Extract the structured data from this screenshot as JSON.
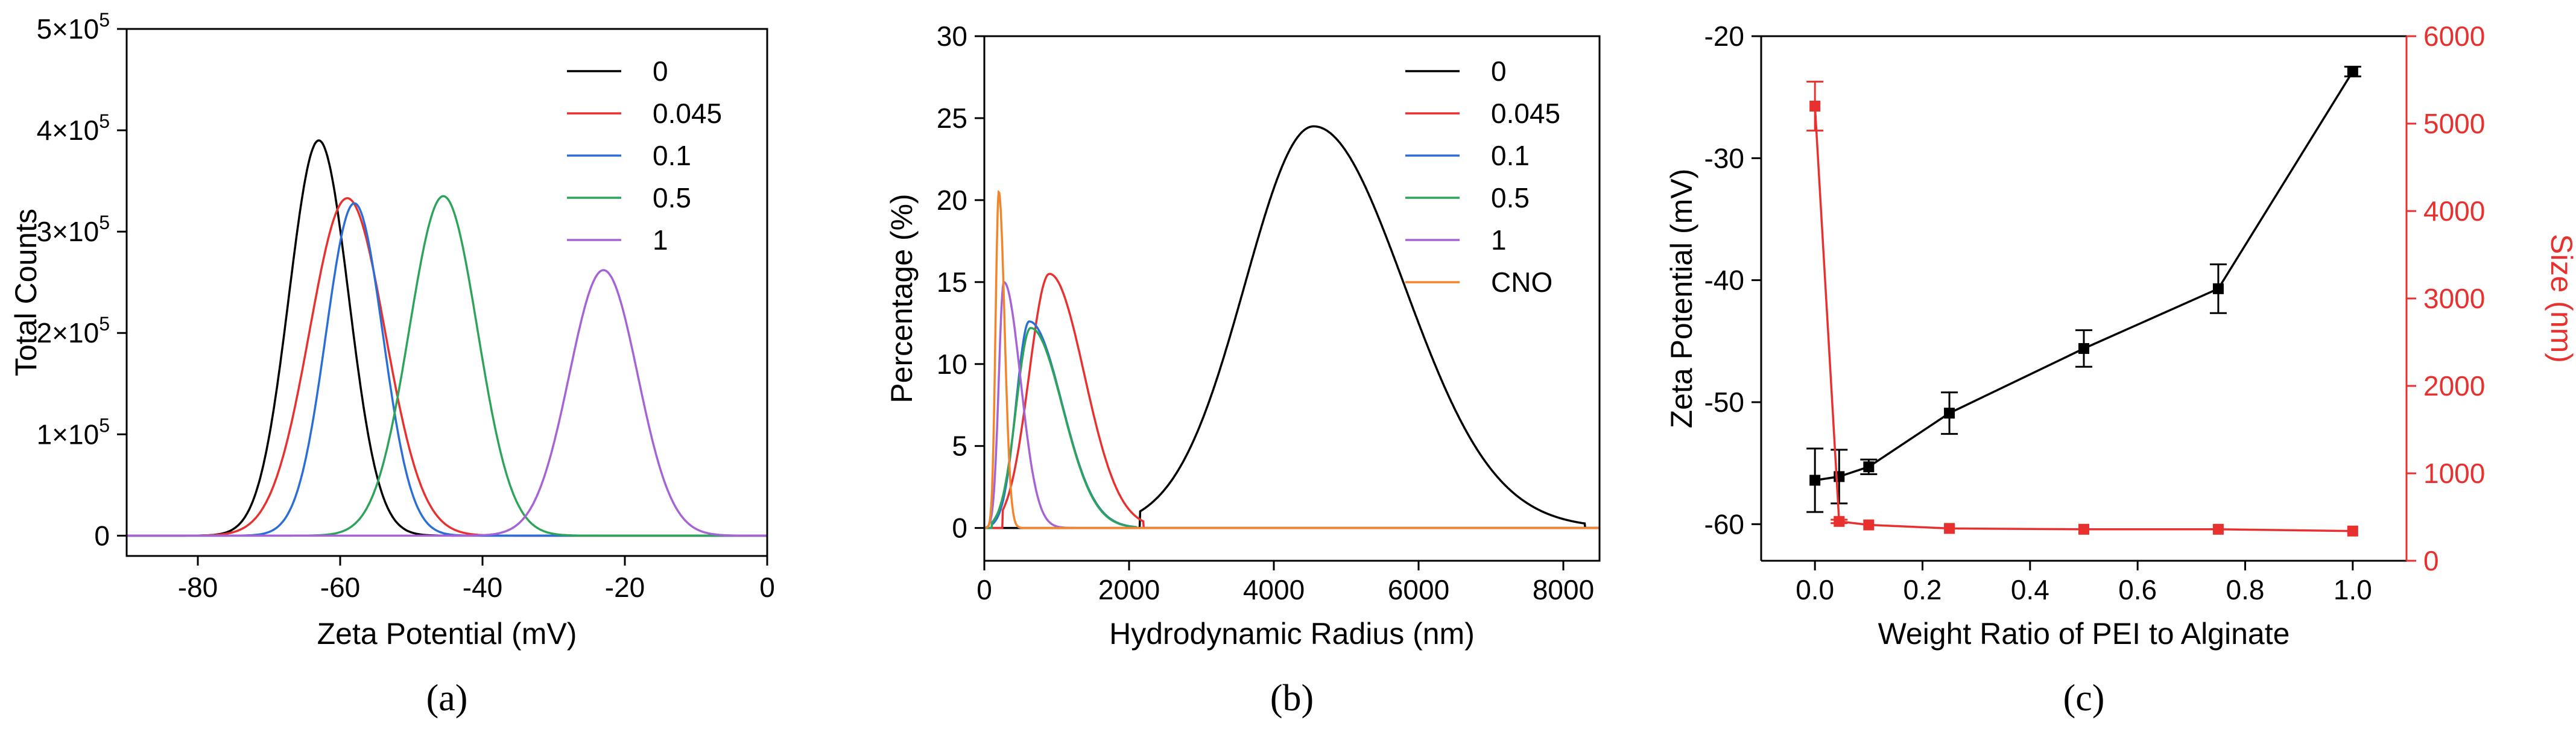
{
  "chart_data": [
    {
      "id": "a",
      "type": "line",
      "panel_label": "(a)",
      "xlabel": "Zeta Potential (mV)",
      "ylabel": "Total Counts",
      "xlim": [
        -90,
        0
      ],
      "ylim": [
        -20000,
        500000
      ],
      "xticks": [
        -80,
        -60,
        -40,
        -20,
        0
      ],
      "yticks": [
        {
          "value": 0,
          "mant": "0",
          "exp": ""
        },
        {
          "value": 100000,
          "mant": "1×10",
          "exp": "5"
        },
        {
          "value": 200000,
          "mant": "2×10",
          "exp": "5"
        },
        {
          "value": 300000,
          "mant": "3×10",
          "exp": "5"
        },
        {
          "value": 400000,
          "mant": "4×10",
          "exp": "5"
        },
        {
          "value": 500000,
          "mant": "5×10",
          "exp": "5"
        }
      ],
      "legend_position": "top-right",
      "series": [
        {
          "name": "0",
          "color": "#000000",
          "peak_x": -63,
          "peak_y": 390000,
          "sigma": 4.2
        },
        {
          "name": "0.045",
          "color": "#e8312f",
          "peak_x": -59,
          "peak_y": 333000,
          "sigma": 5.3
        },
        {
          "name": "0.1",
          "color": "#2b6fd6",
          "peak_x": -58,
          "peak_y": 328000,
          "sigma": 4.0
        },
        {
          "name": "0.5",
          "color": "#2ea35a",
          "peak_x": -45.5,
          "peak_y": 335000,
          "sigma": 4.8
        },
        {
          "name": "1",
          "color": "#a563d6",
          "peak_x": -23,
          "peak_y": 262000,
          "sigma": 4.8
        }
      ]
    },
    {
      "id": "b",
      "type": "line",
      "panel_label": "(b)",
      "xlabel": "Hydrodynamic Radius (nm)",
      "ylabel": "Percentage (%)",
      "xlim": [
        0,
        8500
      ],
      "ylim": [
        -2,
        30
      ],
      "xticks": [
        0,
        2000,
        4000,
        6000,
        8000
      ],
      "yticks": [
        0,
        5,
        10,
        15,
        20,
        25,
        30
      ],
      "legend_position": "top-right",
      "series": [
        {
          "name": "0",
          "color": "#000000",
          "peak_x": 4550,
          "peak_y": 24.5,
          "sigma_left": 950,
          "sigma_right": 1250,
          "start": 2150,
          "end": 8300
        },
        {
          "name": "0.045",
          "color": "#e8312f",
          "peak_x": 900,
          "peak_y": 15.5,
          "sigma_left": 280,
          "sigma_right": 480,
          "start": 250,
          "end": 2200
        },
        {
          "name": "0.1",
          "color": "#2b6fd6",
          "peak_x": 620,
          "peak_y": 12.6,
          "sigma_left": 180,
          "sigma_right": 450,
          "start": 100,
          "end": 2100
        },
        {
          "name": "0.5",
          "color": "#2ea35a",
          "peak_x": 640,
          "peak_y": 12.2,
          "sigma_left": 200,
          "sigma_right": 440,
          "start": 100,
          "end": 2100
        },
        {
          "name": "1",
          "color": "#a563d6",
          "peak_x": 270,
          "peak_y": 15.0,
          "sigma_left": 70,
          "sigma_right": 230,
          "start": 0,
          "end": 1400
        },
        {
          "name": "CNO",
          "color": "#f2852b",
          "peak_x": 200,
          "peak_y": 20.5,
          "sigma_left": 45,
          "sigma_right": 80,
          "start": 0,
          "end": 8500
        }
      ]
    },
    {
      "id": "c",
      "type": "scatter",
      "panel_label": "(c)",
      "xlabel": "Weight Ratio of PEI to Alginate",
      "ylabel_left": "Zeta Potential (mV)",
      "ylabel_right": "Size (nm)",
      "xlim": [
        -0.1,
        1.1
      ],
      "ylim_left": [
        -63,
        -20
      ],
      "ylim_right": [
        0,
        6000
      ],
      "xticks": [
        0.0,
        0.2,
        0.4,
        0.6,
        0.8,
        1.0
      ],
      "xtick_labels": [
        "0.0",
        "0.2",
        "0.4",
        "0.6",
        "0.8",
        "1.0"
      ],
      "yticks_left": [
        -60,
        -50,
        -40,
        -30,
        -20
      ],
      "yticks_right": [
        0,
        1000,
        2000,
        3000,
        4000,
        5000,
        6000
      ],
      "right_axis_color": "#e8312f",
      "series": [
        {
          "name": "Zeta Potential",
          "axis": "left",
          "color": "#000000",
          "x": [
            0.0,
            0.045,
            0.1,
            0.25,
            0.5,
            0.75,
            1.0
          ],
          "y": [
            -56.4,
            -56.1,
            -55.3,
            -50.9,
            -45.6,
            -40.7,
            -22.9
          ],
          "err": [
            2.6,
            2.2,
            0.6,
            1.7,
            1.5,
            2.0,
            0.4
          ]
        },
        {
          "name": "Size",
          "axis": "right",
          "color": "#e8312f",
          "x": [
            0.0,
            0.045,
            0.1,
            0.25,
            0.5,
            0.75,
            1.0
          ],
          "y": [
            5200,
            450,
            410,
            370,
            360,
            360,
            340
          ],
          "err": [
            280,
            20,
            0,
            0,
            0,
            0,
            0
          ]
        }
      ]
    }
  ]
}
